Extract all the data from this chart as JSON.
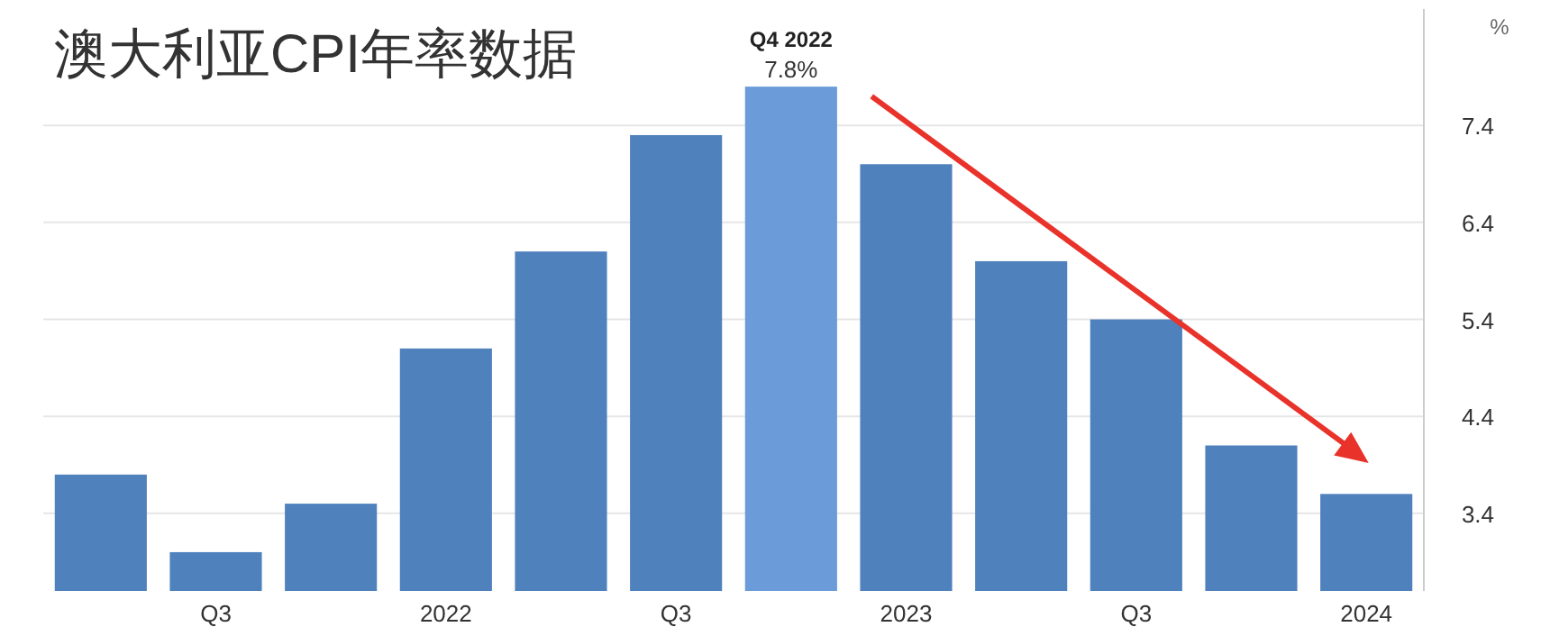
{
  "chart_data": {
    "type": "bar",
    "title": "澳大利亚CPI年率数据",
    "categories": [
      null,
      "Q3",
      null,
      "2022",
      null,
      "Q3",
      null,
      "2023",
      null,
      "Q3",
      null,
      "2024"
    ],
    "values": [
      3.8,
      3.0,
      3.5,
      5.1,
      6.1,
      7.3,
      7.8,
      7.0,
      6.0,
      5.4,
      4.1,
      3.6
    ],
    "colors": [
      "#4f81bd",
      "#4f81bd",
      "#4f81bd",
      "#4f81bd",
      "#4f81bd",
      "#4f81bd",
      "#6b9bd8",
      "#4f81bd",
      "#4f81bd",
      "#4f81bd",
      "#4f81bd",
      "#4f81bd"
    ],
    "value_labels": [
      null,
      null,
      null,
      null,
      null,
      null,
      "7.8%",
      null,
      null,
      null,
      null,
      null
    ],
    "annotations": [
      "Q4 2022"
    ],
    "ylabel": "%",
    "ylim": [
      2.6,
      8.6
    ],
    "yticks": [
      3.4,
      4.4,
      5.4,
      6.4,
      7.4
    ],
    "grid": "y"
  }
}
